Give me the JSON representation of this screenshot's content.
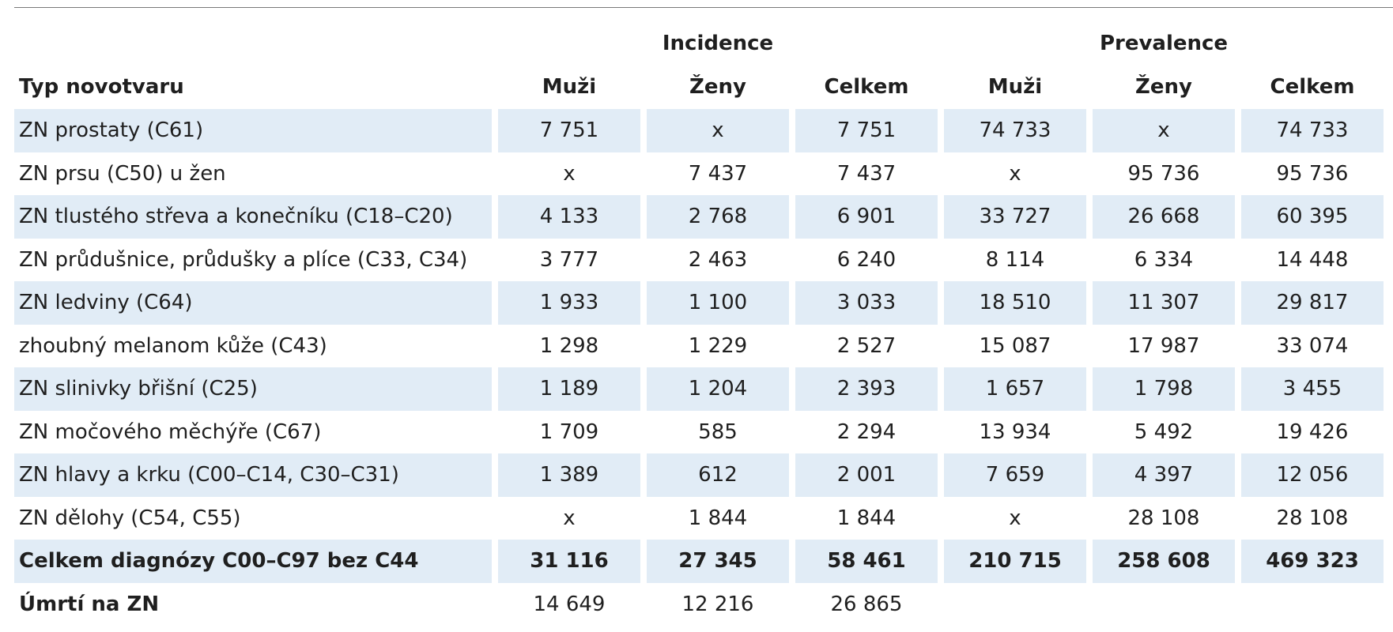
{
  "headers": {
    "group_incidence": "Incidence",
    "group_prevalence": "Prevalence",
    "type": "Typ novotvaru",
    "cols": [
      "Muži",
      "Ženy",
      "Celkem",
      "Muži",
      "Ženy",
      "Celkem"
    ]
  },
  "rows": [
    {
      "label": "ZN prostaty (C61)",
      "values": [
        "7 751",
        "x",
        "7 751",
        "74 733",
        "x",
        "74 733"
      ]
    },
    {
      "label": "ZN prsu (C50) u žen",
      "values": [
        "x",
        "7 437",
        "7 437",
        "x",
        "95 736",
        "95 736"
      ]
    },
    {
      "label": "ZN tlustého střeva a konečníku (C18–C20)",
      "values": [
        "4 133",
        "2 768",
        "6 901",
        "33 727",
        "26 668",
        "60 395"
      ]
    },
    {
      "label": "ZN průdušnice, průdušky a plíce (C33, C34)",
      "values": [
        "3 777",
        "2 463",
        "6 240",
        "8 114",
        "6 334",
        "14 448"
      ]
    },
    {
      "label": "ZN ledviny (C64)",
      "values": [
        "1 933",
        "1 100",
        "3 033",
        "18 510",
        "11 307",
        "29 817"
      ]
    },
    {
      "label": "zhoubný melanom kůže (C43)",
      "values": [
        "1 298",
        "1 229",
        "2 527",
        "15 087",
        "17 987",
        "33 074"
      ]
    },
    {
      "label": "ZN slinivky břišní (C25)",
      "values": [
        "1 189",
        "1 204",
        "2 393",
        "1 657",
        "1 798",
        "3 455"
      ]
    },
    {
      "label": "ZN močového měchýře (C67)",
      "values": [
        "1 709",
        "585",
        "2 294",
        "13 934",
        "5 492",
        "19 426"
      ]
    },
    {
      "label": "ZN hlavy a krku (C00–C14, C30–C31)",
      "values": [
        "1 389",
        "612",
        "2 001",
        "7 659",
        "4 397",
        "12 056"
      ]
    },
    {
      "label": "ZN dělohy (C54, C55)",
      "values": [
        "x",
        "1 844",
        "1 844",
        "x",
        "28 108",
        "28 108"
      ]
    }
  ],
  "total": {
    "label": "Celkem diagnózy C00–C97 bez C44",
    "values": [
      "31 116",
      "27 345",
      "58 461",
      "210 715",
      "258 608",
      "469 323"
    ]
  },
  "deaths": {
    "label": "Úmrtí  na ZN",
    "values": [
      "14 649",
      "12 216",
      "26 865"
    ]
  }
}
